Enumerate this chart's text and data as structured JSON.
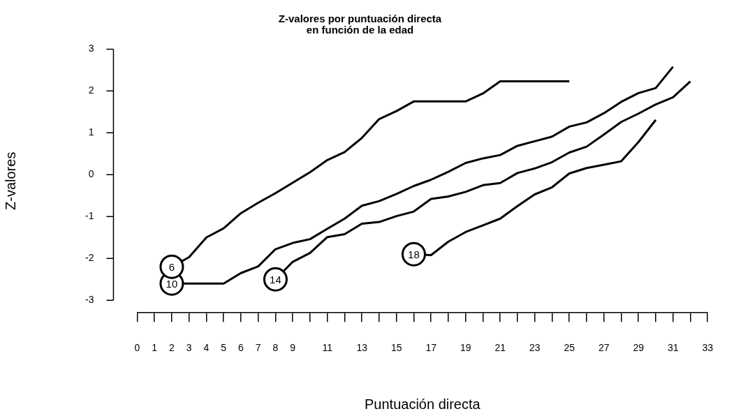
{
  "chart_data": {
    "type": "line",
    "title": "Z-valores por puntuación directa\nen función de la edad",
    "xlabel": "Puntuación directa",
    "ylabel": "Z-valores",
    "xlim": [
      0,
      33
    ],
    "ylim": [
      -3.3,
      3
    ],
    "xticks": [
      0,
      1,
      2,
      3,
      4,
      5,
      6,
      7,
      8,
      9,
      {
        "value": 10,
        "label": null
      },
      11,
      {
        "value": 12,
        "label": null
      },
      13,
      {
        "value": 14,
        "label": null
      },
      15,
      {
        "value": 16,
        "label": null
      },
      17,
      {
        "value": 18,
        "label": null
      },
      19,
      {
        "value": 20,
        "label": null
      },
      21,
      {
        "value": 22,
        "label": null
      },
      23,
      {
        "value": 24,
        "label": null
      },
      25,
      {
        "value": 26,
        "label": null
      },
      27,
      {
        "value": 28,
        "label": null
      },
      29,
      {
        "value": 30,
        "label": null
      },
      31,
      {
        "value": 32,
        "label": null
      },
      33
    ],
    "yticks": [
      -3,
      -2,
      -1,
      0,
      1,
      2,
      3
    ],
    "grid": false,
    "legend": false,
    "line_style": "solid",
    "series": [
      {
        "name": "6",
        "color": "#000000",
        "x": [
          2,
          3,
          4,
          5,
          6,
          7,
          8,
          9,
          10,
          11,
          12,
          13,
          14,
          15,
          16,
          17,
          18,
          19,
          20,
          21,
          22,
          23,
          24,
          25
        ],
        "values": [
          -2.2,
          -1.97,
          -1.5,
          -1.28,
          -0.92,
          -0.67,
          -0.44,
          -0.19,
          0.06,
          0.35,
          0.54,
          0.88,
          1.33,
          1.52,
          1.75,
          1.75,
          1.75,
          1.75,
          1.94,
          2.23,
          2.23,
          2.23,
          2.23,
          2.23
        ]
      },
      {
        "name": "10",
        "color": "#000000",
        "x": [
          2,
          3,
          4,
          5,
          6,
          7,
          8,
          9,
          10,
          11,
          12,
          13,
          14,
          15,
          16,
          17,
          18,
          19,
          20,
          21,
          22,
          23,
          24,
          25,
          26,
          27,
          28,
          29,
          30,
          31
        ],
        "values": [
          -2.6,
          -2.6,
          -2.6,
          -2.6,
          -2.35,
          -2.19,
          -1.78,
          -1.63,
          -1.54,
          -1.29,
          -1.05,
          -0.74,
          -0.63,
          -0.46,
          -0.27,
          -0.12,
          0.07,
          0.28,
          0.39,
          0.47,
          0.69,
          0.8,
          0.91,
          1.15,
          1.25,
          1.47,
          1.74,
          1.95,
          2.07,
          2.58
        ]
      },
      {
        "name": "14",
        "color": "#000000",
        "x": [
          8,
          9,
          10,
          11,
          12,
          13,
          14,
          15,
          16,
          17,
          18,
          19,
          20,
          21,
          22,
          23,
          24,
          25,
          26,
          27,
          28,
          29,
          30,
          31,
          32
        ],
        "values": [
          -2.5,
          -2.08,
          -1.87,
          -1.49,
          -1.42,
          -1.17,
          -1.13,
          -0.99,
          -0.88,
          -0.58,
          -0.52,
          -0.41,
          -0.25,
          -0.2,
          0.04,
          0.15,
          0.3,
          0.53,
          0.67,
          0.96,
          1.26,
          1.46,
          1.68,
          1.85,
          2.23
        ]
      },
      {
        "name": "18",
        "color": "#000000",
        "x": [
          16,
          17,
          18,
          19,
          20,
          21,
          22,
          23,
          24,
          25,
          26,
          27,
          28,
          29,
          30
        ],
        "values": [
          -1.9,
          -1.92,
          -1.6,
          -1.37,
          -1.21,
          -1.05,
          -0.75,
          -0.47,
          -0.3,
          0.03,
          0.16,
          0.24,
          0.32,
          0.78,
          1.31
        ]
      }
    ]
  }
}
